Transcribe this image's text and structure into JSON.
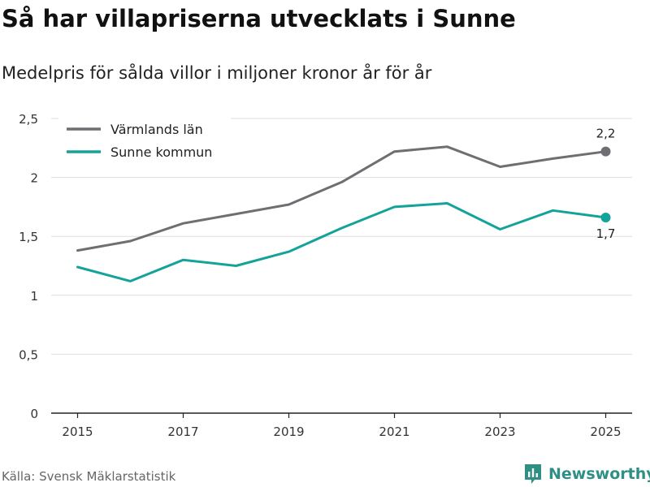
{
  "title": "Så har villapriserna utvecklats i Sunne",
  "subtitle": "Medelpris för sålda villor i miljoner kronor år för år",
  "source": "Källa: Svensk Mäklarstatistik",
  "brand": "Newsworthy",
  "colors": {
    "varmland": "#6f6e73",
    "sunne": "#14a39a",
    "grid": "#dddddd",
    "axis": "#222222",
    "brand": "#2f8f84"
  },
  "chart_data": {
    "type": "line",
    "title": "Så har villapriserna utvecklats i Sunne",
    "subtitle": "Medelpris för sålda villor i miljoner kronor år för år",
    "xlabel": "",
    "ylabel": "",
    "x": [
      2015,
      2016,
      2017,
      2018,
      2019,
      2020,
      2021,
      2022,
      2023,
      2024,
      2025
    ],
    "xticks": [
      2015,
      2017,
      2019,
      2021,
      2023,
      2025
    ],
    "yticks": [
      0,
      0.5,
      1,
      1.5,
      2,
      2.5
    ],
    "ytick_labels": [
      "0",
      "0,5",
      "1",
      "1,5",
      "2",
      "2,5"
    ],
    "ylim": [
      0,
      2.5
    ],
    "xlim": [
      2014.5,
      2025.5
    ],
    "grid": true,
    "legend_position": "top-left",
    "series": [
      {
        "name": "Värmlands län",
        "color": "#6f6e73",
        "values": [
          1.38,
          1.46,
          1.61,
          1.69,
          1.77,
          1.96,
          2.22,
          2.26,
          2.09,
          2.16,
          2.22
        ],
        "end_label": "2,2"
      },
      {
        "name": "Sunne kommun",
        "color": "#14a39a",
        "values": [
          1.24,
          1.12,
          1.3,
          1.25,
          1.37,
          1.57,
          1.75,
          1.78,
          1.56,
          1.72,
          1.66
        ],
        "end_label": "1,7"
      }
    ]
  }
}
